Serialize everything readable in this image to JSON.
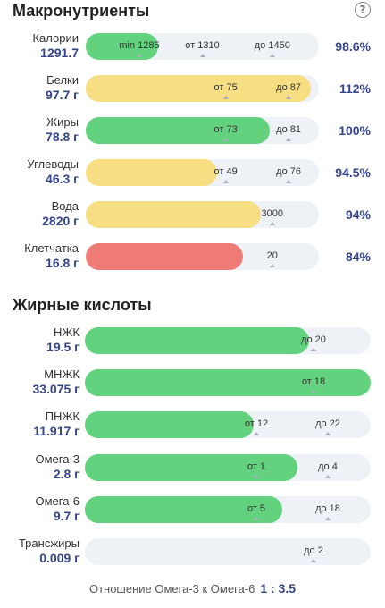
{
  "macro": {
    "title": "Макронутриенты",
    "items": [
      {
        "name": "Калории",
        "value": "1291.7",
        "percent": "98.6%",
        "fill": "green",
        "fill_fraction": 0.31,
        "markers": [
          {
            "text": "min 1285",
            "pos": 0.23,
            "tri": 0.23,
            "dark": true
          },
          {
            "text": "от 1310",
            "pos": 0.5,
            "tri": 0.5
          },
          {
            "text": "до 1450",
            "pos": 0.8,
            "tri": 0.8
          }
        ]
      },
      {
        "name": "Белки",
        "value": "97.7 г",
        "percent": "112%",
        "fill": "yellow",
        "fill_fraction": 0.965,
        "markers": [
          {
            "text": "от 75",
            "pos": 0.6,
            "tri": 0.6
          },
          {
            "text": "до 87",
            "pos": 0.87,
            "tri": 0.87
          }
        ]
      },
      {
        "name": "Жиры",
        "value": "78.8 г",
        "percent": "100%",
        "fill": "green",
        "fill_fraction": 0.79,
        "markers": [
          {
            "text": "от 73",
            "pos": 0.6,
            "tri": 0.6
          },
          {
            "text": "до 81",
            "pos": 0.87,
            "tri": 0.87
          }
        ]
      },
      {
        "name": "Углеводы",
        "value": "46.3 г",
        "percent": "94.5%",
        "fill": "yellow",
        "fill_fraction": 0.565,
        "markers": [
          {
            "text": "от 49",
            "pos": 0.6,
            "tri": 0.6
          },
          {
            "text": "до 76",
            "pos": 0.87,
            "tri": 0.87
          }
        ]
      },
      {
        "name": "Вода",
        "value": "2820 г",
        "percent": "94%",
        "fill": "yellow",
        "fill_fraction": 0.75,
        "markers": [
          {
            "text": "3000",
            "pos": 0.8,
            "tri": 0.8
          }
        ]
      },
      {
        "name": "Клетчатка",
        "value": "16.8 г",
        "percent": "84%",
        "fill": "red",
        "fill_fraction": 0.675,
        "markers": [
          {
            "text": "20",
            "pos": 0.8,
            "tri": 0.8
          }
        ]
      }
    ]
  },
  "fatty": {
    "title": "Жирные кислоты",
    "items": [
      {
        "name": "НЖК",
        "value": "19.5 г",
        "fill": "green",
        "fill_fraction": 0.785,
        "markers": [
          {
            "text": "до 20",
            "pos": 0.8,
            "tri": 0.8
          }
        ]
      },
      {
        "name": "МНЖК",
        "value": "33.075 г",
        "fill": "green",
        "fill_fraction": 1.0,
        "markers": [
          {
            "text": "от 18",
            "pos": 0.8,
            "tri": 0.8
          }
        ]
      },
      {
        "name": "ПНЖК",
        "value": "11.917 г",
        "fill": "green",
        "fill_fraction": 0.59,
        "markers": [
          {
            "text": "от 12",
            "pos": 0.6,
            "tri": 0.6
          },
          {
            "text": "до 22",
            "pos": 0.85,
            "tri": 0.85
          }
        ]
      },
      {
        "name": "Омега-3",
        "value": "2.8 г",
        "fill": "green",
        "fill_fraction": 0.745,
        "markers": [
          {
            "text": "от 1",
            "pos": 0.6,
            "tri": 0.6
          },
          {
            "text": "до 4",
            "pos": 0.85,
            "tri": 0.85
          }
        ]
      },
      {
        "name": "Омега-6",
        "value": "9.7 г",
        "fill": "green",
        "fill_fraction": 0.69,
        "markers": [
          {
            "text": "от 5",
            "pos": 0.6,
            "tri": 0.6
          },
          {
            "text": "до 18",
            "pos": 0.85,
            "tri": 0.85
          }
        ]
      },
      {
        "name": "Трансжиры",
        "value": "0.009 г",
        "fill": "green",
        "fill_fraction": 0.0,
        "markers": [
          {
            "text": "до 2",
            "pos": 0.8,
            "tri": 0.8
          }
        ]
      }
    ]
  },
  "ratio": {
    "label": "Отношение Омега-3 к Омега-6",
    "value": "1 : 3.5"
  },
  "icons": {
    "help": "help-icon"
  }
}
